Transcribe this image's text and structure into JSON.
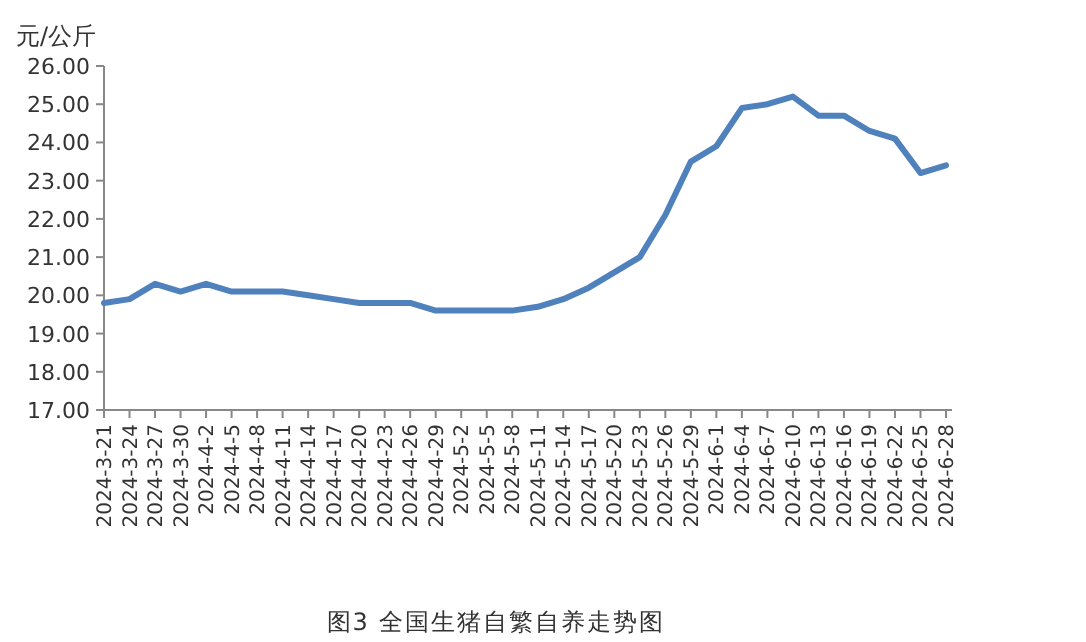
{
  "chart_data": {
    "type": "line",
    "title": "图3 全国生猪自繁自养走势图",
    "ylabel": "元/公斤",
    "categories": [
      "2024-3-21",
      "2024-3-24",
      "2024-3-27",
      "2024-3-30",
      "2024-4-2",
      "2024-4-5",
      "2024-4-8",
      "2024-4-11",
      "2024-4-14",
      "2024-4-17",
      "2024-4-20",
      "2024-4-23",
      "2024-4-26",
      "2024-4-29",
      "2024-5-2",
      "2024-5-5",
      "2024-5-8",
      "2024-5-11",
      "2024-5-14",
      "2024-5-17",
      "2024-5-20",
      "2024-5-23",
      "2024-5-26",
      "2024-5-29",
      "2024-6-1",
      "2024-6-4",
      "2024-6-7",
      "2024-6-10",
      "2024-6-13",
      "2024-6-16",
      "2024-6-19",
      "2024-6-22",
      "2024-6-25",
      "2024-6-28"
    ],
    "series": [
      {
        "color": "#4f81bd",
        "values": [
          19.8,
          19.9,
          20.3,
          20.1,
          20.3,
          20.1,
          20.1,
          20.1,
          20.0,
          19.9,
          19.8,
          19.8,
          19.8,
          19.6,
          19.6,
          19.6,
          19.6,
          19.7,
          19.9,
          20.2,
          20.6,
          21.0,
          22.1,
          23.5,
          23.9,
          24.9,
          25.0,
          25.2,
          24.7,
          24.7,
          24.3,
          24.1,
          23.2,
          23.4
        ]
      }
    ],
    "ylim": [
      17,
      26
    ],
    "yticks": [
      {
        "value": 17,
        "label": "17.00"
      },
      {
        "value": 18,
        "label": "18.00"
      },
      {
        "value": 19,
        "label": "19.00"
      },
      {
        "value": 20,
        "label": "20.00"
      },
      {
        "value": 21,
        "label": "21.00"
      },
      {
        "value": 22,
        "label": "22.00"
      },
      {
        "value": 23,
        "label": "23.00"
      },
      {
        "value": 24,
        "label": "24.00"
      },
      {
        "value": 25,
        "label": "25.00"
      },
      {
        "value": 26,
        "label": "26.00"
      }
    ],
    "marker": "none",
    "line_style": "solid"
  }
}
